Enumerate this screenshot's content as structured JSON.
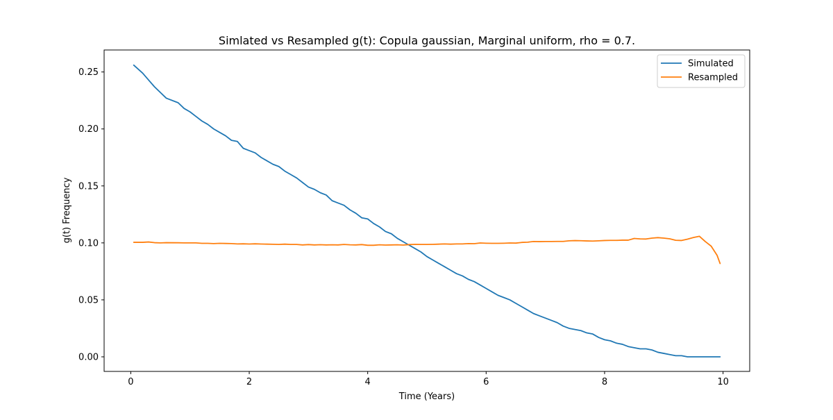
{
  "chart_data": {
    "type": "line",
    "title": "Simlated vs Resampled g(t): Copula gaussian, Marginal uniform, rho =  0.7.",
    "xlabel": "Time (Years)",
    "ylabel": "g(t) Frequency",
    "xlim": [
      -0.45,
      10.45
    ],
    "ylim": [
      -0.0128,
      0.2693
    ],
    "x_ticks": [
      0,
      2,
      4,
      6,
      8,
      10
    ],
    "x_tick_labels": [
      "0",
      "2",
      "4",
      "6",
      "8",
      "10"
    ],
    "y_ticks": [
      0.0,
      0.05,
      0.1,
      0.15,
      0.2,
      0.25
    ],
    "y_tick_labels": [
      "0.00",
      "0.05",
      "0.10",
      "0.15",
      "0.20",
      "0.25"
    ],
    "grid": false,
    "legend_position": "top-right",
    "series": [
      {
        "name": "Simulated",
        "color": "#1f77b4",
        "x": [
          0.05,
          0.2,
          0.3,
          0.4,
          0.5,
          0.6,
          0.8,
          0.9,
          1.0,
          1.1,
          1.2,
          1.3,
          1.4,
          1.5,
          1.6,
          1.7,
          1.8,
          1.9,
          2.0,
          2.1,
          2.2,
          2.3,
          2.4,
          2.5,
          2.6,
          2.7,
          2.8,
          2.9,
          3.0,
          3.1,
          3.2,
          3.3,
          3.4,
          3.5,
          3.6,
          3.7,
          3.8,
          3.9,
          4.0,
          4.1,
          4.2,
          4.3,
          4.4,
          4.5,
          4.6,
          4.7,
          4.8,
          4.9,
          5.0,
          5.1,
          5.2,
          5.3,
          5.4,
          5.5,
          5.6,
          5.7,
          5.8,
          5.9,
          6.0,
          6.1,
          6.2,
          6.3,
          6.4,
          6.5,
          6.6,
          6.7,
          6.8,
          6.9,
          7.0,
          7.1,
          7.2,
          7.3,
          7.4,
          7.5,
          7.6,
          7.7,
          7.8,
          7.9,
          8.0,
          8.1,
          8.2,
          8.3,
          8.4,
          8.5,
          8.6,
          8.7,
          8.8,
          8.9,
          9.0,
          9.1,
          9.2,
          9.3,
          9.4,
          9.5,
          9.6,
          9.7,
          9.8,
          9.9,
          9.95
        ],
        "y": [
          0.256,
          0.249,
          0.243,
          0.237,
          0.232,
          0.227,
          0.223,
          0.218,
          0.215,
          0.211,
          0.207,
          0.204,
          0.2,
          0.197,
          0.194,
          0.19,
          0.189,
          0.183,
          0.181,
          0.179,
          0.175,
          0.172,
          0.169,
          0.167,
          0.163,
          0.16,
          0.157,
          0.153,
          0.149,
          0.147,
          0.144,
          0.142,
          0.137,
          0.135,
          0.133,
          0.129,
          0.126,
          0.122,
          0.121,
          0.117,
          0.114,
          0.11,
          0.108,
          0.104,
          0.101,
          0.098,
          0.095,
          0.092,
          0.088,
          0.085,
          0.082,
          0.079,
          0.076,
          0.073,
          0.071,
          0.068,
          0.066,
          0.063,
          0.06,
          0.057,
          0.054,
          0.052,
          0.05,
          0.047,
          0.044,
          0.041,
          0.038,
          0.036,
          0.034,
          0.032,
          0.03,
          0.027,
          0.025,
          0.024,
          0.023,
          0.021,
          0.02,
          0.017,
          0.015,
          0.014,
          0.012,
          0.011,
          0.009,
          0.008,
          0.007,
          0.007,
          0.006,
          0.004,
          0.003,
          0.002,
          0.001,
          0.001,
          0.0,
          0.0,
          0.0,
          0.0,
          0.0,
          0.0,
          0.0
        ]
      },
      {
        "name": "Resampled",
        "color": "#ff7f0e",
        "x": [
          0.05,
          0.2,
          0.3,
          0.4,
          0.5,
          0.6,
          0.8,
          0.9,
          1.0,
          1.1,
          1.2,
          1.3,
          1.4,
          1.5,
          1.6,
          1.7,
          1.8,
          1.9,
          2.0,
          2.1,
          2.2,
          2.3,
          2.4,
          2.5,
          2.6,
          2.7,
          2.8,
          2.9,
          3.0,
          3.1,
          3.2,
          3.3,
          3.4,
          3.5,
          3.6,
          3.7,
          3.8,
          3.9,
          4.0,
          4.1,
          4.2,
          4.3,
          4.4,
          4.5,
          4.6,
          4.7,
          4.8,
          4.9,
          5.0,
          5.1,
          5.2,
          5.3,
          5.4,
          5.5,
          5.6,
          5.7,
          5.8,
          5.9,
          6.0,
          6.1,
          6.2,
          6.3,
          6.4,
          6.5,
          6.6,
          6.7,
          6.8,
          6.9,
          7.0,
          7.1,
          7.2,
          7.3,
          7.4,
          7.5,
          7.6,
          7.7,
          7.8,
          7.9,
          8.0,
          8.1,
          8.2,
          8.3,
          8.4,
          8.5,
          8.6,
          8.7,
          8.8,
          8.9,
          9.0,
          9.1,
          9.2,
          9.3,
          9.4,
          9.5,
          9.6,
          9.7,
          9.8,
          9.9,
          9.95
        ],
        "y": [
          0.1005,
          0.1005,
          0.1008,
          0.1002,
          0.1,
          0.1002,
          0.1001,
          0.1,
          0.1,
          0.1,
          0.0996,
          0.0996,
          0.0994,
          0.0996,
          0.0995,
          0.0994,
          0.0991,
          0.0992,
          0.099,
          0.0992,
          0.099,
          0.0989,
          0.0988,
          0.0986,
          0.0989,
          0.0986,
          0.0986,
          0.0982,
          0.0985,
          0.0982,
          0.0984,
          0.0982,
          0.0983,
          0.0982,
          0.0986,
          0.0983,
          0.0982,
          0.0985,
          0.0979,
          0.0979,
          0.0983,
          0.0981,
          0.0982,
          0.0983,
          0.0981,
          0.0985,
          0.0987,
          0.0986,
          0.0986,
          0.0987,
          0.0989,
          0.0991,
          0.0989,
          0.0991,
          0.0991,
          0.0994,
          0.0993,
          0.0999,
          0.0997,
          0.0996,
          0.0996,
          0.0997,
          0.0999,
          0.0998,
          0.1004,
          0.1006,
          0.1012,
          0.1011,
          0.1012,
          0.1012,
          0.1013,
          0.1013,
          0.1018,
          0.102,
          0.1019,
          0.1017,
          0.1016,
          0.1018,
          0.1021,
          0.1022,
          0.1022,
          0.1024,
          0.1024,
          0.1039,
          0.1035,
          0.1034,
          0.1042,
          0.1046,
          0.1042,
          0.1036,
          0.1023,
          0.1021,
          0.1033,
          0.1047,
          0.1058,
          0.1012,
          0.0971,
          0.089,
          0.0819
        ]
      }
    ]
  }
}
